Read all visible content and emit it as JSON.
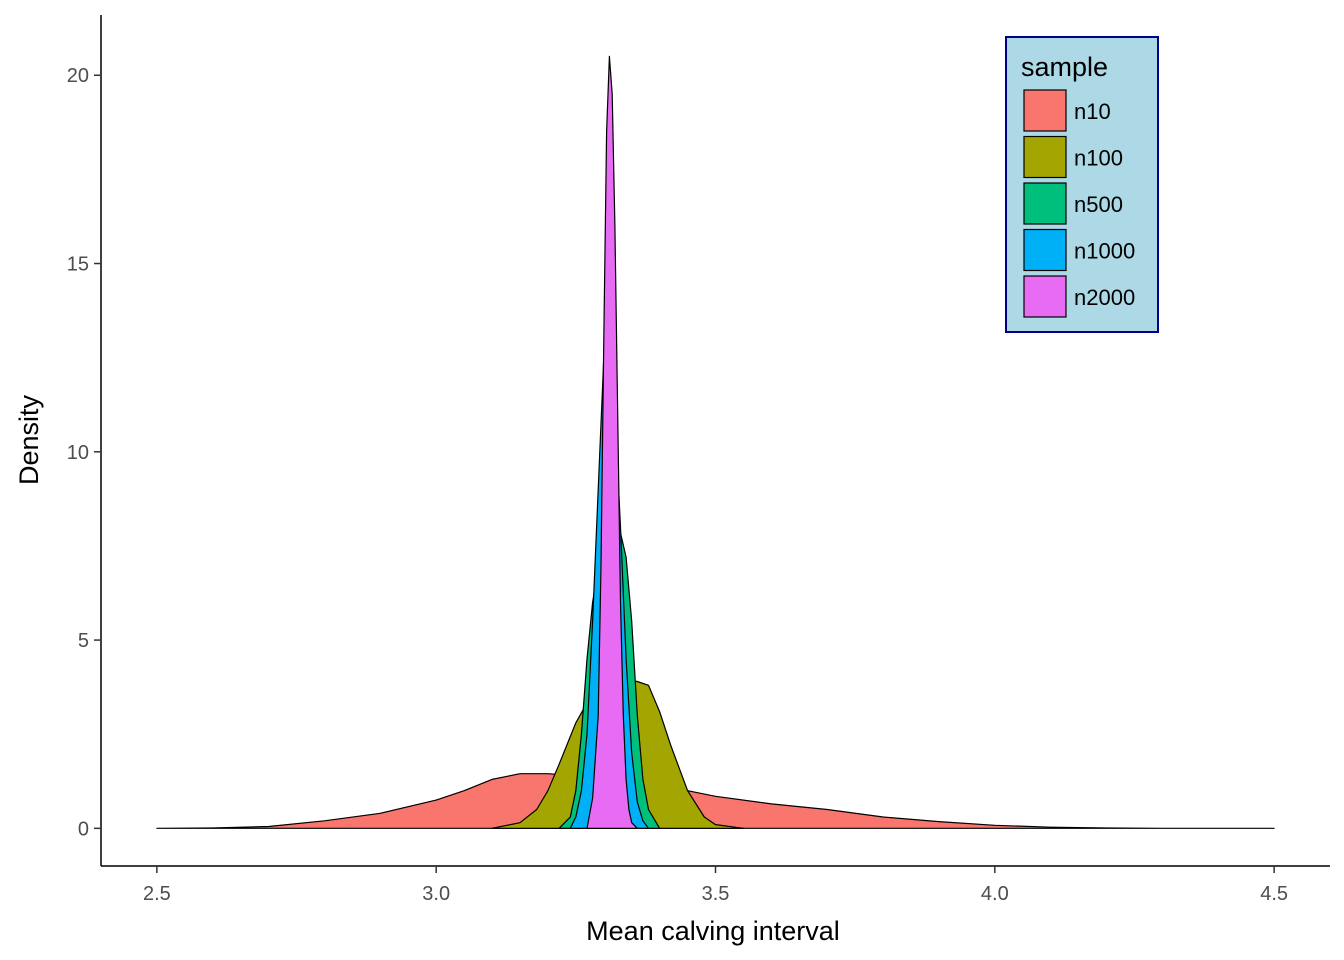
{
  "chart_data": {
    "type": "area",
    "chart_kind": "density",
    "title": "",
    "xlabel": "Mean calving interval",
    "ylabel": "Density",
    "xlim": [
      2.4,
      4.6
    ],
    "ylim": [
      -1.0,
      21.6
    ],
    "x_ticks": [
      2.5,
      3.0,
      3.5,
      4.0,
      4.5
    ],
    "x_tick_labels": [
      "2.5",
      "3.0",
      "3.5",
      "4.0",
      "4.5"
    ],
    "y_ticks": [
      0,
      5,
      10,
      15,
      20
    ],
    "y_tick_labels": [
      "0",
      "5",
      "10",
      "15",
      "20"
    ],
    "grid": false,
    "legend": {
      "title": "sample",
      "placement": "top-right",
      "background": "#add8e6",
      "border": "#00008b"
    },
    "series": [
      {
        "name": "n10",
        "color": "#f8766d",
        "points": [
          [
            2.5,
            0
          ],
          [
            2.6,
            0.01
          ],
          [
            2.7,
            0.05
          ],
          [
            2.8,
            0.2
          ],
          [
            2.9,
            0.4
          ],
          [
            3.0,
            0.75
          ],
          [
            3.05,
            1.0
          ],
          [
            3.1,
            1.3
          ],
          [
            3.15,
            1.45
          ],
          [
            3.2,
            1.45
          ],
          [
            3.25,
            1.4
          ],
          [
            3.3,
            1.25
          ],
          [
            3.35,
            1.15
          ],
          [
            3.4,
            1.1
          ],
          [
            3.45,
            1.0
          ],
          [
            3.5,
            0.85
          ],
          [
            3.6,
            0.65
          ],
          [
            3.7,
            0.5
          ],
          [
            3.8,
            0.3
          ],
          [
            3.9,
            0.18
          ],
          [
            4.0,
            0.08
          ],
          [
            4.1,
            0.03
          ],
          [
            4.2,
            0.01
          ],
          [
            4.3,
            0
          ],
          [
            4.5,
            0
          ]
        ]
      },
      {
        "name": "n100",
        "color": "#a3a500",
        "points": [
          [
            3.1,
            0
          ],
          [
            3.15,
            0.15
          ],
          [
            3.18,
            0.5
          ],
          [
            3.2,
            1.0
          ],
          [
            3.22,
            1.7
          ],
          [
            3.25,
            2.8
          ],
          [
            3.28,
            3.6
          ],
          [
            3.3,
            3.85
          ],
          [
            3.33,
            3.95
          ],
          [
            3.36,
            3.9
          ],
          [
            3.38,
            3.8
          ],
          [
            3.4,
            3.1
          ],
          [
            3.42,
            2.2
          ],
          [
            3.45,
            1.0
          ],
          [
            3.48,
            0.3
          ],
          [
            3.5,
            0.1
          ],
          [
            3.55,
            0
          ]
        ]
      },
      {
        "name": "n500",
        "color": "#00bf7d",
        "points": [
          [
            3.22,
            0
          ],
          [
            3.24,
            0.3
          ],
          [
            3.25,
            1.0
          ],
          [
            3.26,
            2.5
          ],
          [
            3.27,
            4.5
          ],
          [
            3.28,
            6.0
          ],
          [
            3.3,
            7.8
          ],
          [
            3.32,
            8.5
          ],
          [
            3.34,
            7.2
          ],
          [
            3.35,
            5.5
          ],
          [
            3.36,
            3.0
          ],
          [
            3.37,
            1.3
          ],
          [
            3.38,
            0.5
          ],
          [
            3.4,
            0
          ]
        ]
      },
      {
        "name": "n1000",
        "color": "#00b0f6",
        "points": [
          [
            3.24,
            0
          ],
          [
            3.25,
            0.3
          ],
          [
            3.26,
            1.0
          ],
          [
            3.27,
            2.5
          ],
          [
            3.28,
            5.5
          ],
          [
            3.29,
            9.0
          ],
          [
            3.3,
            12.5
          ],
          [
            3.31,
            13.0
          ],
          [
            3.32,
            11.0
          ],
          [
            3.33,
            8.0
          ],
          [
            3.34,
            4.5
          ],
          [
            3.35,
            2.0
          ],
          [
            3.36,
            0.7
          ],
          [
            3.37,
            0.2
          ],
          [
            3.38,
            0
          ]
        ]
      },
      {
        "name": "n2000",
        "color": "#e76bf3",
        "points": [
          [
            3.27,
            0
          ],
          [
            3.28,
            0.8
          ],
          [
            3.29,
            3.0
          ],
          [
            3.295,
            7.0
          ],
          [
            3.3,
            13.0
          ],
          [
            3.305,
            18.5
          ],
          [
            3.31,
            20.5
          ],
          [
            3.315,
            19.5
          ],
          [
            3.32,
            16.0
          ],
          [
            3.325,
            11.0
          ],
          [
            3.33,
            6.0
          ],
          [
            3.335,
            3.0
          ],
          [
            3.34,
            1.3
          ],
          [
            3.345,
            0.5
          ],
          [
            3.35,
            0.15
          ],
          [
            3.36,
            0
          ]
        ]
      }
    ]
  }
}
